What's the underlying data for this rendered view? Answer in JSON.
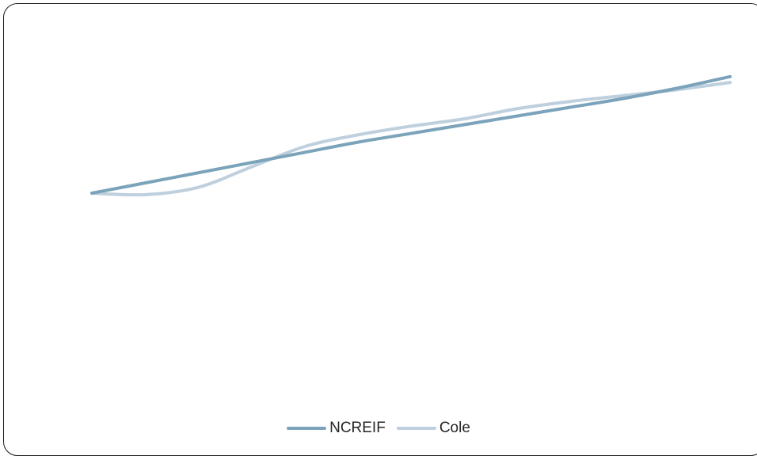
{
  "chart_data": {
    "type": "line",
    "title": "",
    "xlabel": "",
    "ylabel": "",
    "x": [
      0,
      1,
      2,
      3,
      4,
      5,
      6,
      7,
      8,
      9,
      10,
      11,
      12
    ],
    "ylim": [
      0,
      100
    ],
    "xlim": [
      0,
      12
    ],
    "grid": false,
    "smooth": true,
    "legend_position": "bottom",
    "series": [
      {
        "name": "NCREIF",
        "color": "#7BA3BA",
        "values": [
          50,
          53.5,
          57,
          60.5,
          64,
          67.5,
          70.5,
          73.5,
          76.5,
          79.5,
          82.5,
          86,
          90
        ]
      },
      {
        "name": "Cole",
        "color": "#BECFDD",
        "values": [
          50,
          49.5,
          52,
          59,
          66,
          70,
          73,
          75.5,
          79,
          81.5,
          83.5,
          85.5,
          88
        ]
      }
    ]
  }
}
